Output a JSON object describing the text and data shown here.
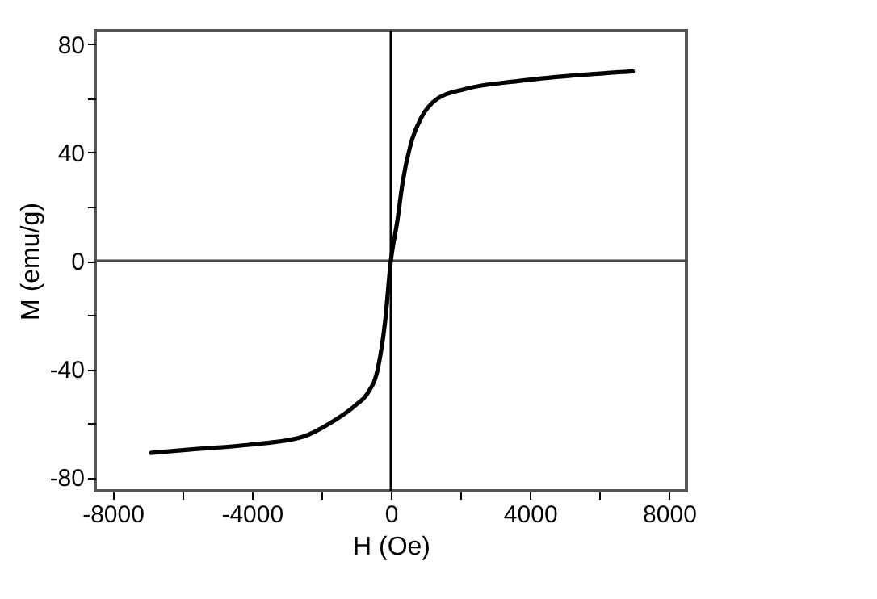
{
  "chart_data": {
    "type": "line",
    "xlabel": "H (Oe)",
    "ylabel": "M (emu/g)",
    "x": [
      -6900,
      -5630,
      -4080,
      -2530,
      -1750,
      -980,
      -670,
      -360,
      -170,
      0,
      190,
      340,
      570,
      880,
      1350,
      2120,
      3670,
      5220,
      6960
    ],
    "series": [
      {
        "color": "#000000",
        "values": [
          -71,
          -69.6,
          -68,
          -65,
          -60,
          -53,
          -49,
          -39,
          -23,
          0,
          15,
          29,
          43,
          53,
          60,
          63.4,
          66.4,
          68.4,
          70
        ]
      }
    ],
    "xlim": [
      -8500,
      8500
    ],
    "ylim": [
      -85,
      85
    ],
    "xticks": [
      -8000,
      {
        "value": -6000,
        "label": null
      },
      -4000,
      {
        "value": -2000,
        "label": null
      },
      0,
      {
        "value": 2000,
        "label": null
      },
      4000,
      {
        "value": 6000,
        "label": null
      },
      8000
    ],
    "yticks": [
      -80,
      {
        "value": -60,
        "label": null
      },
      -40,
      {
        "value": -20,
        "label": null
      },
      0,
      {
        "value": 20,
        "label": null
      },
      40,
      {
        "value": 60,
        "label": null
      },
      80
    ],
    "ref_lines": [
      {
        "axis": "x",
        "value": 0,
        "color": "#000000"
      },
      {
        "axis": "y",
        "value": 0,
        "color": "#444444"
      }
    ],
    "grid": false,
    "marker": "none",
    "line_style": "solid"
  }
}
